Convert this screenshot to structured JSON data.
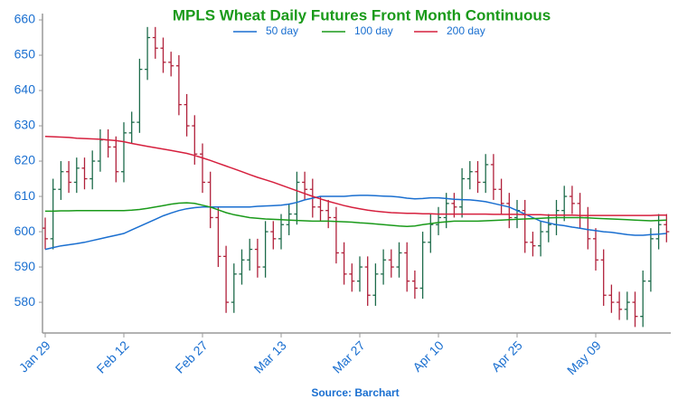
{
  "chart_data": {
    "type": "ohlc",
    "title": "MPLS Wheat Daily Futures Front Month Continuous",
    "source": "Source: Barchart",
    "categories": [
      "Jan 29",
      null,
      null,
      null,
      null,
      null,
      null,
      null,
      null,
      null,
      "Feb 12",
      null,
      null,
      null,
      null,
      null,
      null,
      null,
      null,
      null,
      "Feb 27",
      null,
      null,
      null,
      null,
      null,
      null,
      null,
      null,
      null,
      "Mar 13",
      null,
      null,
      null,
      null,
      null,
      null,
      null,
      null,
      null,
      "Mar 27",
      null,
      null,
      null,
      null,
      null,
      null,
      null,
      null,
      null,
      "Apr 10",
      null,
      null,
      null,
      null,
      null,
      null,
      null,
      null,
      null,
      "Apr 25",
      null,
      null,
      null,
      null,
      null,
      null,
      null,
      null,
      null,
      "May 09",
      null,
      null,
      null,
      null,
      null,
      null,
      null,
      null,
      null
    ],
    "ohlc": {
      "up_color": "#1d6b4a",
      "down_color": "#b0203a",
      "open": [
        601,
        598,
        612,
        617,
        614,
        618,
        615,
        620,
        626,
        624,
        617,
        628,
        631,
        646,
        655,
        652,
        648,
        647,
        636,
        630,
        622,
        614,
        604,
        593,
        580,
        588,
        592,
        595,
        590,
        600,
        598,
        602,
        605,
        614,
        612,
        607,
        606,
        604,
        594,
        588,
        586,
        590,
        582,
        588,
        592,
        590,
        594,
        586,
        584,
        597,
        602,
        604,
        608,
        607,
        615,
        617,
        614,
        619,
        612,
        608,
        604,
        606,
        597,
        596,
        600,
        602,
        606,
        610,
        608,
        604,
        598,
        592,
        582,
        580,
        578,
        580,
        576,
        586,
        598,
        602
      ],
      "high": [
        604,
        615,
        620,
        620,
        621,
        621,
        623,
        629,
        629,
        627,
        631,
        634,
        649,
        658,
        658,
        655,
        651,
        650,
        639,
        633,
        625,
        617,
        607,
        596,
        591,
        595,
        598,
        598,
        603,
        603,
        605,
        608,
        617,
        617,
        615,
        610,
        609,
        607,
        597,
        591,
        593,
        593,
        591,
        595,
        595,
        597,
        597,
        589,
        600,
        605,
        607,
        611,
        611,
        618,
        620,
        620,
        622,
        622,
        615,
        611,
        609,
        609,
        600,
        603,
        605,
        609,
        613,
        613,
        611,
        607,
        601,
        595,
        585,
        583,
        583,
        583,
        589,
        601,
        605,
        605
      ],
      "low": [
        595,
        595,
        609,
        611,
        611,
        612,
        612,
        617,
        621,
        614,
        614,
        625,
        628,
        643,
        649,
        645,
        644,
        633,
        627,
        619,
        611,
        601,
        590,
        577,
        577,
        585,
        589,
        587,
        587,
        595,
        595,
        599,
        602,
        609,
        604,
        603,
        601,
        591,
        585,
        583,
        583,
        579,
        579,
        585,
        587,
        587,
        583,
        581,
        581,
        594,
        599,
        601,
        604,
        604,
        612,
        611,
        611,
        609,
        605,
        601,
        601,
        594,
        593,
        593,
        597,
        599,
        603,
        605,
        601,
        595,
        589,
        579,
        577,
        575,
        575,
        573,
        573,
        583,
        595,
        597
      ],
      "close": [
        598,
        612,
        617,
        614,
        618,
        615,
        620,
        626,
        624,
        617,
        628,
        631,
        646,
        655,
        652,
        648,
        647,
        636,
        630,
        622,
        614,
        604,
        593,
        580,
        588,
        592,
        595,
        590,
        600,
        598,
        602,
        605,
        614,
        612,
        607,
        606,
        604,
        594,
        588,
        586,
        590,
        582,
        588,
        592,
        590,
        594,
        586,
        584,
        597,
        602,
        604,
        608,
        607,
        615,
        617,
        614,
        619,
        612,
        608,
        604,
        606,
        597,
        596,
        600,
        602,
        606,
        610,
        608,
        604,
        598,
        592,
        582,
        580,
        578,
        580,
        576,
        586,
        598,
        602,
        600
      ]
    },
    "series": [
      {
        "name": "50 day",
        "color": "#1a6fd0",
        "values": [
          595,
          595.5,
          596,
          596.3,
          596.6,
          597,
          597.5,
          598,
          598.5,
          599,
          599.5,
          600.5,
          601.5,
          602.5,
          603.5,
          604.5,
          605.3,
          606,
          606.5,
          606.8,
          607,
          607,
          607,
          607,
          607,
          607,
          607,
          607.2,
          607.3,
          607.4,
          607.5,
          607.8,
          608.3,
          609,
          609.5,
          610,
          610,
          610,
          610,
          610.2,
          610.3,
          610.3,
          610.2,
          610.1,
          610,
          609.8,
          609.5,
          609.3,
          609.4,
          609.6,
          609.6,
          609.4,
          609.2,
          609.1,
          609,
          608.8,
          608.5,
          608,
          607.5,
          607,
          606,
          605,
          604,
          603,
          602.5,
          602,
          601.7,
          601.3,
          601,
          600.6,
          600.3,
          600,
          599.8,
          599.5,
          599.2,
          599,
          599,
          599.2,
          599.3,
          599.5
        ]
      },
      {
        "name": "100 day",
        "color": "#1a9a1a",
        "values": [
          605.8,
          605.8,
          605.9,
          605.9,
          606,
          606,
          606,
          606,
          606,
          606,
          606,
          606.1,
          606.3,
          606.6,
          607,
          607.4,
          607.8,
          608.1,
          608.2,
          608,
          607.5,
          607,
          606.2,
          605.4,
          604.8,
          604.4,
          604,
          603.8,
          603.6,
          603.5,
          603.4,
          603.3,
          603.2,
          603.1,
          603,
          603,
          603,
          602.9,
          602.8,
          602.7,
          602.5,
          602.4,
          602.2,
          602,
          601.8,
          601.6,
          601.5,
          601.6,
          602,
          602.3,
          602.6,
          602.8,
          603,
          603,
          603,
          603,
          603.1,
          603.2,
          603.3,
          603.4,
          603.5,
          603.6,
          603.7,
          603.8,
          603.9,
          604,
          604,
          604,
          604,
          603.9,
          603.8,
          603.7,
          603.6,
          603.5,
          603.4,
          603.3,
          603.2,
          603.1,
          603.2,
          603.3
        ]
      },
      {
        "name": "200 day",
        "color": "#d6203e",
        "values": [
          627,
          626.9,
          626.8,
          626.7,
          626.5,
          626.4,
          626.3,
          626.2,
          626,
          625.8,
          625.5,
          625,
          624.6,
          624.2,
          623.8,
          623.4,
          623,
          622.6,
          622.2,
          621.6,
          620.9,
          620.2,
          619.4,
          618.6,
          617.8,
          617,
          616.2,
          615.4,
          614.7,
          614,
          613.2,
          612.4,
          611.6,
          610.8,
          610,
          609.3,
          608.6,
          608,
          607.4,
          606.9,
          606.5,
          606.1,
          605.8,
          605.6,
          605.4,
          605.3,
          605.2,
          605.2,
          605.1,
          605.1,
          605,
          605,
          605,
          605,
          605,
          605,
          605,
          604.9,
          604.9,
          604.9,
          604.9,
          604.8,
          604.8,
          604.8,
          604.7,
          604.7,
          604.7,
          604.7,
          604.6,
          604.6,
          604.6,
          604.6,
          604.6,
          604.6,
          604.6,
          604.6,
          604.6,
          604.6,
          604.7,
          604.7
        ]
      }
    ],
    "ylim": [
      571.3,
      661.8
    ],
    "yticks": [
      580,
      590,
      600,
      610,
      620,
      630,
      640,
      650,
      660
    ]
  }
}
